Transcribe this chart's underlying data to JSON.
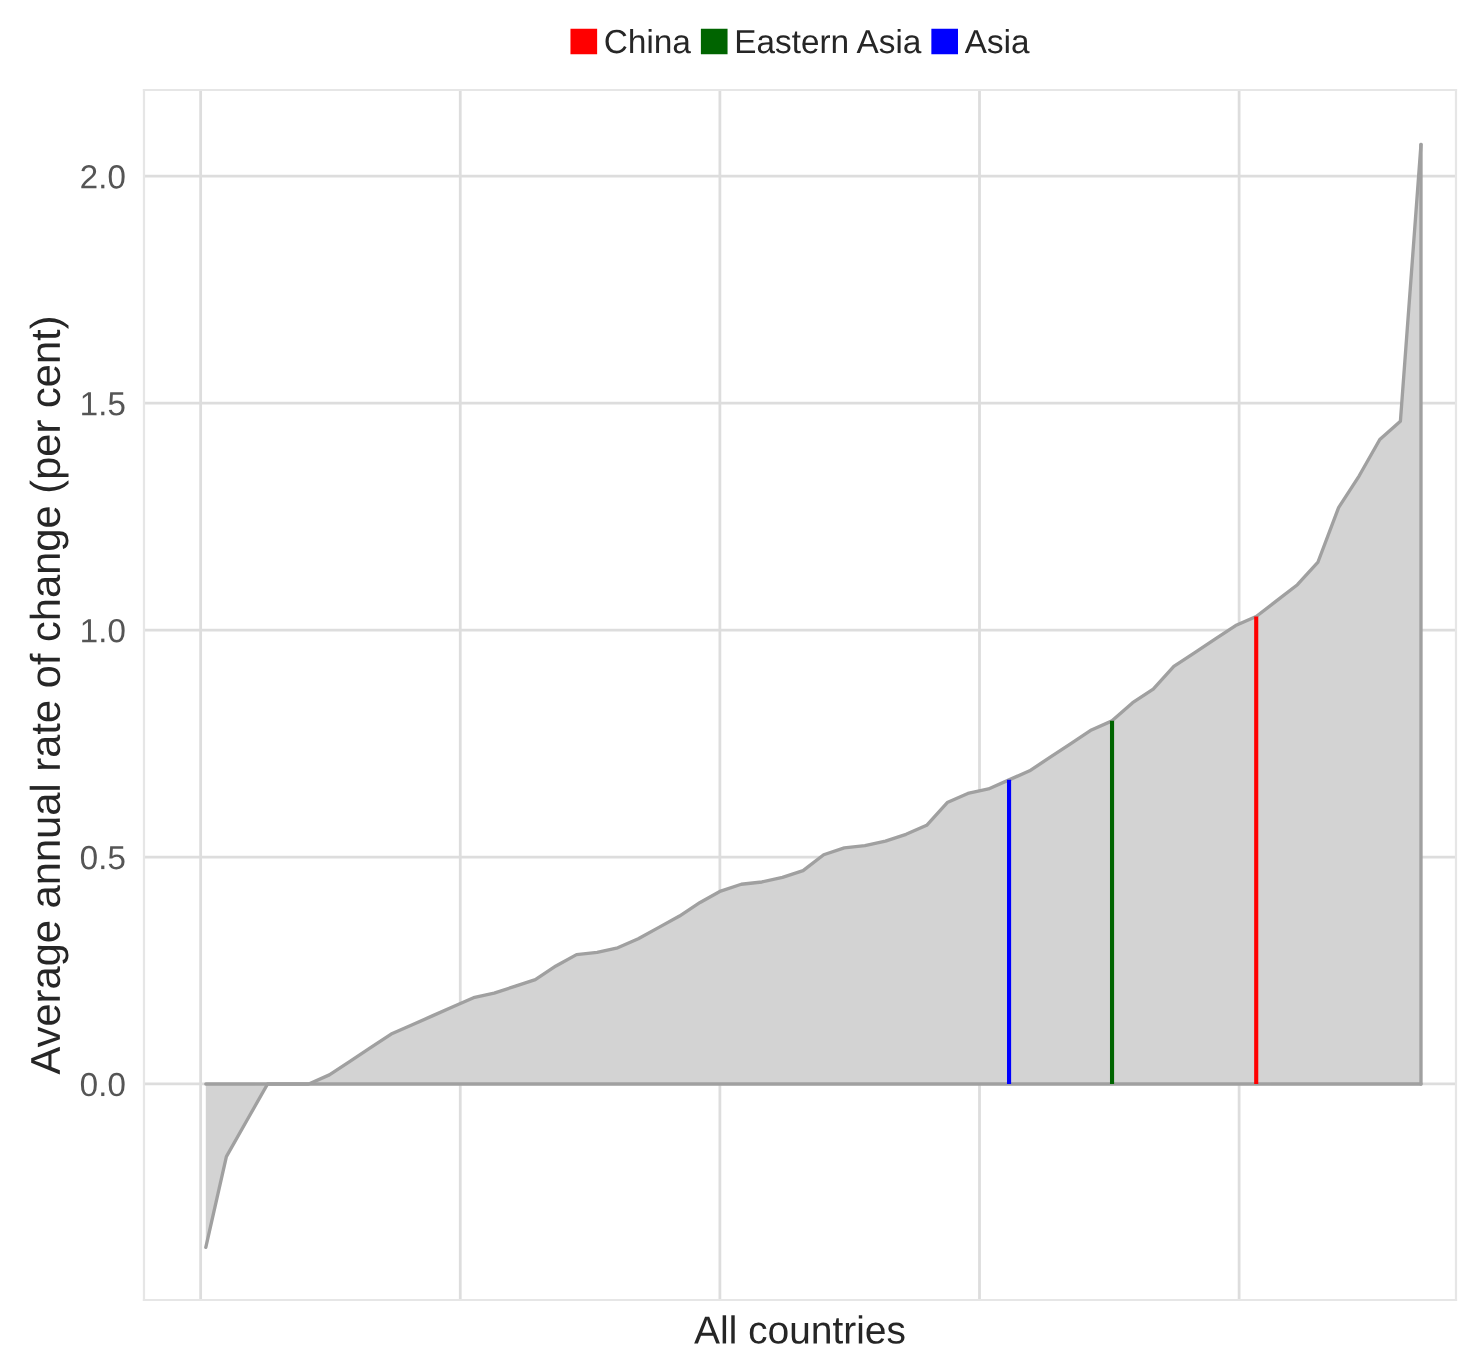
{
  "chart_data": {
    "type": "area",
    "xlabel": "All countries",
    "ylabel": "Average annual rate of change (per cent)",
    "categories": [
      null,
      null,
      null,
      null,
      null,
      null,
      null,
      null,
      null,
      null,
      null,
      null,
      null,
      null,
      null,
      null,
      null,
      null,
      null,
      null,
      null,
      null,
      null,
      null,
      null,
      null,
      null,
      null,
      null,
      null,
      null,
      null,
      null,
      null,
      null,
      null,
      null,
      null,
      null,
      null,
      null,
      null,
      null,
      null,
      null,
      null,
      null,
      null,
      null,
      null,
      null,
      null,
      null,
      null,
      null,
      null,
      null,
      null,
      null,
      null
    ],
    "ylim": [
      -0.476,
      2.19
    ],
    "yticks": [
      {
        "value": 0,
        "label": "0.0"
      },
      {
        "value": 0.5,
        "label": "0.5"
      },
      {
        "value": 1,
        "label": "1.0"
      },
      {
        "value": 1.5,
        "label": "1.5"
      },
      {
        "value": 2,
        "label": "2.0"
      }
    ],
    "grid": true,
    "legend": "top",
    "series": [
      {
        "color": "#d3d3d3",
        "values": [
          -0.36,
          -0.16,
          -0.08,
          0,
          0,
          0,
          0.02,
          0.05,
          0.08,
          0.11,
          0.13,
          0.15,
          0.17,
          0.19,
          0.2,
          0.215,
          0.23,
          0.26,
          0.285,
          0.29,
          0.3,
          0.32,
          0.345,
          0.37,
          0.4,
          0.425,
          0.44,
          0.445,
          0.455,
          0.47,
          0.505,
          0.52,
          0.525,
          0.535,
          0.55,
          0.57,
          0.62,
          0.64,
          0.65,
          0.67,
          0.69,
          0.72,
          0.75,
          0.78,
          0.8,
          0.84,
          0.87,
          0.92,
          0.95,
          0.98,
          1.01,
          1.03,
          1.065,
          1.1,
          1.15,
          1.27,
          1.34,
          1.42,
          1.46,
          2.07
        ]
      },
      {
        "type": "bar",
        "name": "China",
        "color": "#ff0000",
        "values": [
          null,
          null,
          null,
          null,
          null,
          null,
          null,
          null,
          null,
          null,
          null,
          null,
          null,
          null,
          null,
          null,
          null,
          null,
          null,
          null,
          null,
          null,
          null,
          null,
          null,
          null,
          null,
          null,
          null,
          null,
          null,
          null,
          null,
          null,
          null,
          null,
          null,
          null,
          null,
          null,
          null,
          null,
          null,
          null,
          null,
          null,
          null,
          null,
          null,
          null,
          null,
          1.03,
          null,
          null,
          null,
          null,
          null,
          null,
          null,
          null
        ]
      },
      {
        "type": "bar",
        "name": "Eastern Asia",
        "color": "#006400",
        "values": [
          null,
          null,
          null,
          null,
          null,
          null,
          null,
          null,
          null,
          null,
          null,
          null,
          null,
          null,
          null,
          null,
          null,
          null,
          null,
          null,
          null,
          null,
          null,
          null,
          null,
          null,
          null,
          null,
          null,
          null,
          null,
          null,
          null,
          null,
          null,
          null,
          null,
          null,
          null,
          null,
          null,
          null,
          null,
          null,
          0.8,
          null,
          null,
          null,
          null,
          null,
          null,
          null,
          null,
          null,
          null,
          null,
          null,
          null,
          null,
          null
        ]
      },
      {
        "type": "bar",
        "name": "Asia",
        "color": "#0000ff",
        "values": [
          null,
          null,
          null,
          null,
          null,
          null,
          null,
          null,
          null,
          null,
          null,
          null,
          null,
          null,
          null,
          null,
          null,
          null,
          null,
          null,
          null,
          null,
          null,
          null,
          null,
          null,
          null,
          null,
          null,
          null,
          null,
          null,
          null,
          null,
          null,
          null,
          null,
          null,
          null,
          0.67,
          null,
          null,
          null,
          null,
          null,
          null,
          null,
          null,
          null,
          null,
          null,
          null,
          null,
          null,
          null,
          null,
          null,
          null,
          null,
          null
        ]
      }
    ]
  }
}
